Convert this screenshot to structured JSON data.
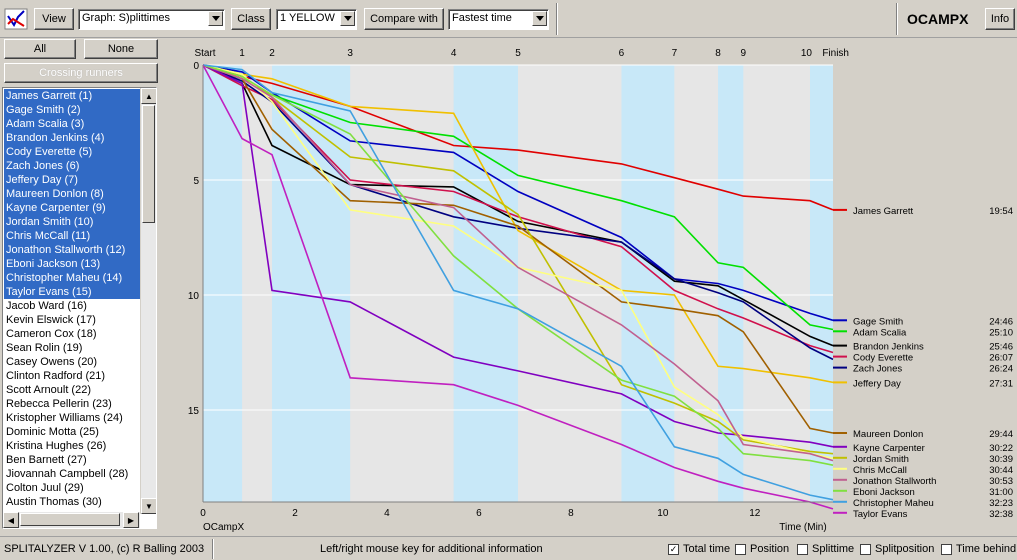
{
  "toolbar": {
    "view_label": "View",
    "graph_select": "Graph: S)plittimes",
    "class_label": "Class",
    "class_select": "1 YELLOW",
    "compare_label": "Compare with",
    "compare_select": "Fastest time",
    "event_name": "OCAMPX",
    "info_label": "Info",
    "app_icon": "splitalyzer-logo-icon"
  },
  "left_panel": {
    "all_label": "All",
    "none_label": "None",
    "crossing_label": "Crossing runners"
  },
  "runners": [
    {
      "label": "James Garrett  (1)",
      "selected": true
    },
    {
      "label": "Gage Smith  (2)",
      "selected": true
    },
    {
      "label": "Adam Scalia  (3)",
      "selected": true
    },
    {
      "label": "Brandon Jenkins  (4)",
      "selected": true
    },
    {
      "label": "Cody Everette  (5)",
      "selected": true
    },
    {
      "label": "Zach Jones  (6)",
      "selected": true
    },
    {
      "label": "Jeffery Day  (7)",
      "selected": true
    },
    {
      "label": "Maureen Donlon  (8)",
      "selected": true
    },
    {
      "label": "Kayne Carpenter  (9)",
      "selected": true
    },
    {
      "label": "Jordan Smith  (10)",
      "selected": true
    },
    {
      "label": "Chris McCall  (11)",
      "selected": true
    },
    {
      "label": "Jonathon Stallworth  (12)",
      "selected": true
    },
    {
      "label": "Eboni Jackson  (13)",
      "selected": true
    },
    {
      "label": "Christopher Maheu  (14)",
      "selected": true
    },
    {
      "label": "Taylor Evans  (15)",
      "selected": true
    },
    {
      "label": "Jacob Ward  (16)",
      "selected": false
    },
    {
      "label": "Kevin Elswick  (17)",
      "selected": false
    },
    {
      "label": "Cameron Cox  (18)",
      "selected": false
    },
    {
      "label": "Sean Rolin  (19)",
      "selected": false
    },
    {
      "label": "Casey Owens  (20)",
      "selected": false
    },
    {
      "label": "Clinton Radford  (21)",
      "selected": false
    },
    {
      "label": "Scott Arnoult  (22)",
      "selected": false
    },
    {
      "label": "Rebecca Pellerin  (23)",
      "selected": false
    },
    {
      "label": "Kristopher Williams  (24)",
      "selected": false
    },
    {
      "label": "Dominic Motta  (25)",
      "selected": false
    },
    {
      "label": "Kristina Hughes  (26)",
      "selected": false
    },
    {
      "label": "Ben Barnett  (27)",
      "selected": false
    },
    {
      "label": "Jiovannah Campbell  (28)",
      "selected": false
    },
    {
      "label": "Colton Juul  (29)",
      "selected": false
    },
    {
      "label": "Austin Thomas  (30)",
      "selected": false
    }
  ],
  "status": {
    "version": "SPLITALYZER V 1.00, (c) R Balling 2003",
    "hint": "Left/right mouse key for additional information",
    "options": [
      {
        "label": "Total time",
        "checked": true
      },
      {
        "label": "Position",
        "checked": false
      },
      {
        "label": "Splittime",
        "checked": false
      },
      {
        "label": "Splitposition",
        "checked": false
      },
      {
        "label": "Time behind",
        "checked": false
      }
    ]
  },
  "chart_data": {
    "type": "line",
    "controls": [
      "Start",
      "1",
      "2",
      "3",
      "4",
      "5",
      "6",
      "7",
      "8",
      "9",
      "10",
      "Finish"
    ],
    "x_ticks": [
      "0",
      "2",
      "4",
      "6",
      "8",
      "10",
      "12"
    ],
    "x_origin_label": "OCampX",
    "xlabel": "Time (Min)",
    "y_ticks": [
      "0",
      "5",
      "10",
      "15"
    ],
    "xlim": [
      0,
      13.7
    ],
    "ylim": [
      0,
      19
    ],
    "control_times": [
      0,
      0.85,
      1.5,
      3.2,
      5.45,
      6.85,
      9.1,
      10.25,
      11.2,
      11.75,
      13.2,
      13.7
    ],
    "series": [
      {
        "name": "James Garrett",
        "time": "19:54",
        "color": "#e00000",
        "values": [
          0,
          0.5,
          0.8,
          1.8,
          3.5,
          3.7,
          4.3,
          4.9,
          5.4,
          5.7,
          5.9,
          6.3
        ]
      },
      {
        "name": "Gage Smith",
        "time": "24:46",
        "color": "#0000c0",
        "values": [
          0,
          0.3,
          1.2,
          3.3,
          3.8,
          5.5,
          7.5,
          9.3,
          9.5,
          9.8,
          10.8,
          11.1
        ]
      },
      {
        "name": "Adam Scalia",
        "time": "25:10",
        "color": "#00e000",
        "values": [
          0,
          0.6,
          1.3,
          2.5,
          3.1,
          4.8,
          5.9,
          6.6,
          8.6,
          8.8,
          11.3,
          11.5
        ]
      },
      {
        "name": "Brandon Jenkins",
        "time": "25:46",
        "color": "#000000",
        "values": [
          0,
          0.8,
          3.5,
          5.2,
          5.3,
          6.8,
          7.7,
          9.4,
          9.6,
          10.2,
          11.8,
          12.2
        ]
      },
      {
        "name": "Cody Everette",
        "time": "26:07",
        "color": "#d0104c",
        "values": [
          0,
          0.9,
          1.5,
          5.0,
          5.5,
          6.6,
          7.9,
          9.8,
          10.6,
          11.0,
          12.2,
          12.5
        ]
      },
      {
        "name": "Zach Jones",
        "time": "26:24",
        "color": "#000080",
        "values": [
          0,
          0.7,
          1.6,
          5.2,
          6.6,
          7.1,
          7.7,
          9.3,
          9.9,
          10.3,
          12.3,
          12.8
        ]
      },
      {
        "name": "Jeffery Day",
        "time": "27:31",
        "color": "#f0c000",
        "values": [
          0,
          0.4,
          0.6,
          1.8,
          2.1,
          7.2,
          9.8,
          10.0,
          13.1,
          13.2,
          13.6,
          13.8
        ]
      },
      {
        "name": "Maureen Donlon",
        "time": "29:44",
        "color": "#a06000",
        "values": [
          0,
          0.6,
          2.8,
          5.9,
          6.1,
          7.0,
          10.3,
          10.6,
          10.9,
          11.6,
          15.8,
          16.0
        ]
      },
      {
        "name": "Kayne Carpenter",
        "time": "30:22",
        "color": "#8000c0",
        "values": [
          0,
          0.8,
          9.8,
          10.3,
          12.7,
          13.3,
          14.3,
          15.5,
          16.0,
          16.1,
          16.4,
          16.6
        ]
      },
      {
        "name": "Jordan Smith",
        "time": "30:39",
        "color": "#c0c000",
        "values": [
          0,
          0.5,
          1.4,
          4.0,
          4.6,
          6.5,
          13.9,
          14.7,
          15.5,
          16.3,
          16.8,
          16.9
        ]
      },
      {
        "name": "Chris McCall",
        "time": "30:44",
        "color": "#ffff80",
        "values": [
          0,
          0.4,
          1.6,
          6.3,
          7.0,
          8.8,
          9.8,
          14.0,
          15.2,
          16.2,
          16.9,
          17.1
        ]
      },
      {
        "name": "Jonathon Stallworth",
        "time": "30:53",
        "color": "#c06090",
        "values": [
          0,
          0.6,
          1.4,
          5.2,
          6.2,
          8.8,
          11.3,
          13.0,
          14.6,
          16.5,
          16.9,
          17.2
        ]
      },
      {
        "name": "Eboni Jackson",
        "time": "31:00",
        "color": "#80e040",
        "values": [
          0,
          0.5,
          1.3,
          3.0,
          8.3,
          10.6,
          13.7,
          14.4,
          15.8,
          16.9,
          17.2,
          17.4
        ]
      },
      {
        "name": "Christopher Maheu",
        "time": "32:23",
        "color": "#40a0e0",
        "values": [
          0,
          0.2,
          1.2,
          2.0,
          9.8,
          10.6,
          13.1,
          16.6,
          17.1,
          17.8,
          18.7,
          18.9
        ]
      },
      {
        "name": "Taylor Evans",
        "time": "32:38",
        "color": "#c020c0",
        "values": [
          0,
          3.2,
          3.9,
          13.6,
          13.9,
          14.8,
          16.5,
          17.5,
          18.1,
          18.4,
          19.0,
          19.3
        ]
      }
    ]
  }
}
